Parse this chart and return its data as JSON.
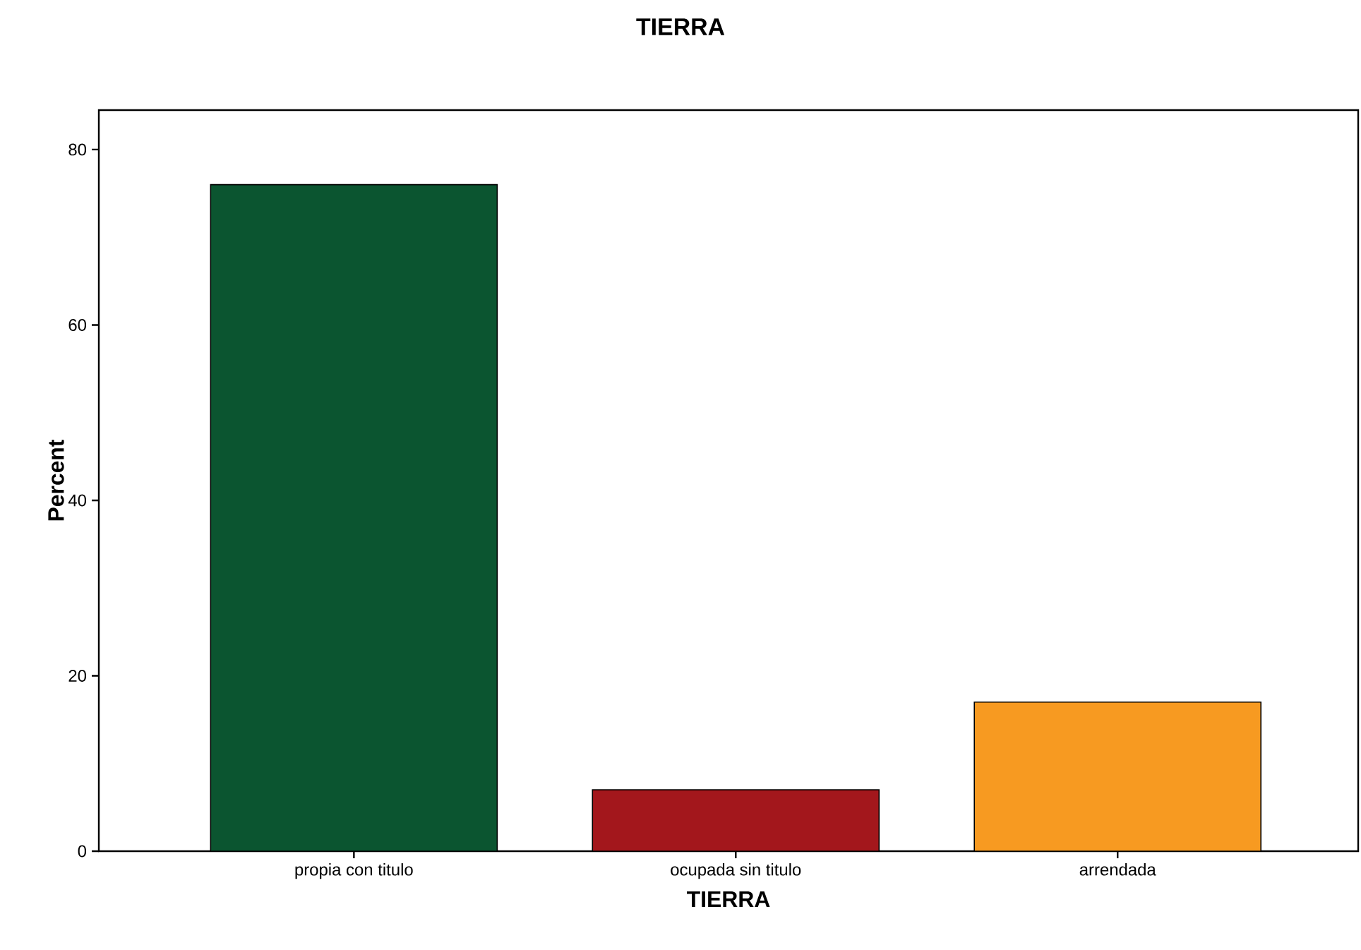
{
  "chart_data": {
    "type": "bar",
    "title": "TIERRA",
    "xlabel": "TIERRA",
    "ylabel": "Percent",
    "categories": [
      "propia con titulo",
      "ocupada sin titulo",
      "arrendada"
    ],
    "values": [
      76,
      7,
      17
    ],
    "colors": [
      "#0b5530",
      "#a3171c",
      "#f79a21"
    ],
    "ylim": [
      0,
      84.5
    ],
    "yticks": [
      0,
      20,
      40,
      60,
      80
    ]
  }
}
